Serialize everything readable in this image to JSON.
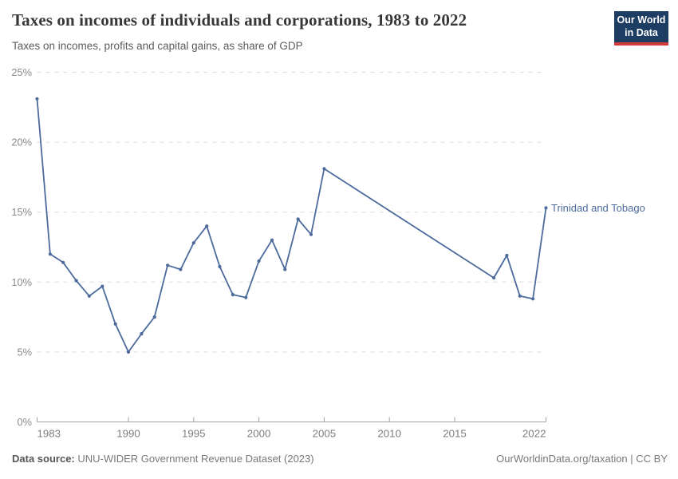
{
  "header": {
    "title": "Taxes on incomes of individuals and corporations, 1983 to 2022",
    "subtitle": "Taxes on incomes, profits and capital gains, as share of GDP"
  },
  "logo": {
    "line1": "Our World",
    "line2": "in Data"
  },
  "chart_data": {
    "type": "line",
    "title": "Taxes on incomes of individuals and corporations, 1983 to 2022",
    "subtitle": "Taxes on incomes, profits and capital gains, as share of GDP",
    "xlabel": "",
    "ylabel": "",
    "ylim": [
      0,
      25
    ],
    "yticks": [
      0,
      5,
      10,
      15,
      20,
      25
    ],
    "ytick_suffix": "%",
    "xlim": [
      1983,
      2022
    ],
    "xticks": [
      1983,
      1990,
      1995,
      2000,
      2005,
      2010,
      2015,
      2022
    ],
    "grid": "horizontal-dashed",
    "legend_position": "end-of-line-label",
    "series": [
      {
        "name": "Trinidad and Tobago",
        "color": "#4C6A9C",
        "points": [
          [
            1983,
            23.1
          ],
          [
            1984,
            12.0
          ],
          [
            1985,
            11.4
          ],
          [
            1986,
            10.1
          ],
          [
            1987,
            9.0
          ],
          [
            1988,
            9.7
          ],
          [
            1989,
            7.0
          ],
          [
            1990,
            5.0
          ],
          [
            1991,
            6.3
          ],
          [
            1992,
            7.5
          ],
          [
            1993,
            11.2
          ],
          [
            1994,
            10.9
          ],
          [
            1995,
            12.8
          ],
          [
            1996,
            14.0
          ],
          [
            1997,
            11.1
          ],
          [
            1998,
            9.1
          ],
          [
            1999,
            8.9
          ],
          [
            2000,
            11.5
          ],
          [
            2001,
            13.0
          ],
          [
            2002,
            10.9
          ],
          [
            2003,
            14.5
          ],
          [
            2004,
            13.4
          ],
          [
            2005,
            18.1
          ],
          [
            2018,
            10.3
          ],
          [
            2019,
            11.9
          ],
          [
            2020,
            9.0
          ],
          [
            2021,
            8.8
          ],
          [
            2022,
            15.3
          ]
        ]
      }
    ]
  },
  "colors": {
    "line": "#4C6A9C",
    "gridline": "#dcdcdc",
    "axis": "#a3a3a3",
    "tick_label": "#8a8a8a",
    "title": "#373737",
    "subtitle": "#5b5b5b",
    "footer_text": "#787878",
    "logo_background": "#1d3d63",
    "logo_accent": "#cf3a3a"
  },
  "footer": {
    "source_label": "Data source:",
    "source_text": "UNU-WIDER Government Revenue Dataset (2023)",
    "credit": "OurWorldinData.org/taxation | CC BY"
  }
}
